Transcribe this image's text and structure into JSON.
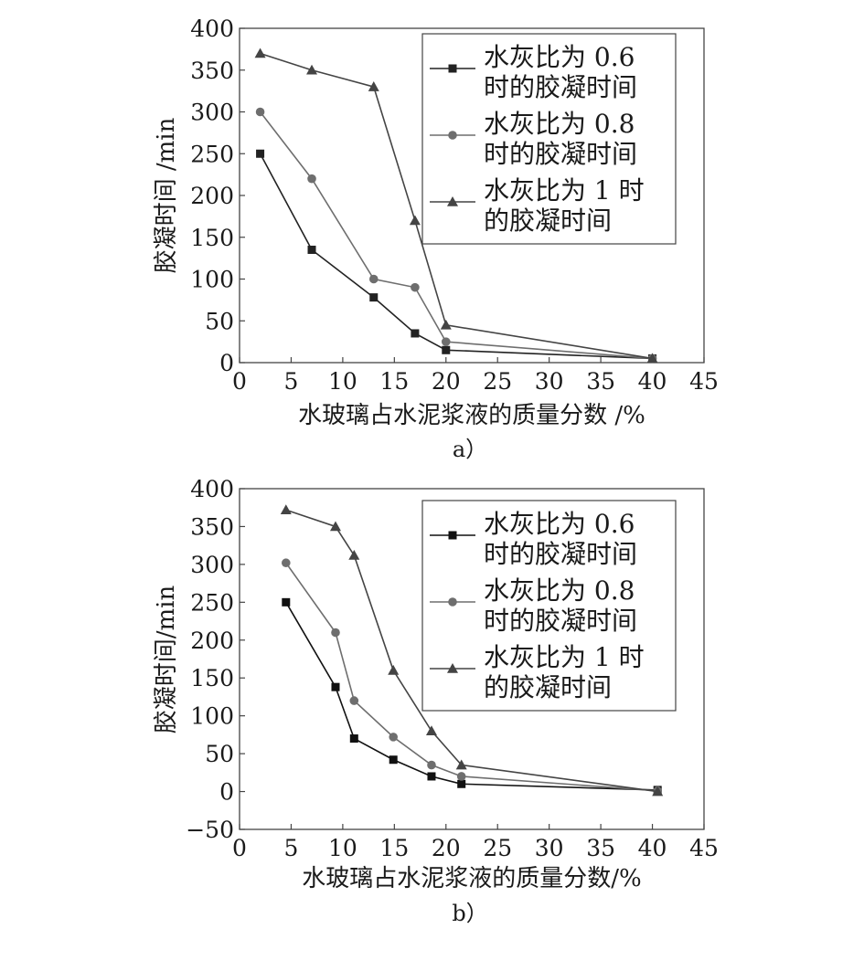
{
  "chart_data": [
    {
      "type": "line",
      "caption": "a）",
      "xlabel": "水玻璃占水泥浆液的质量分数 /%",
      "ylabel": "胶凝时间 /min",
      "xlim": [
        0,
        45
      ],
      "ylim": [
        0,
        400
      ],
      "xticks": [
        "0",
        "5",
        "10",
        "15",
        "20",
        "25",
        "30",
        "35",
        "40",
        "45"
      ],
      "yticks": [
        "0",
        "50",
        "100",
        "150",
        "200",
        "250",
        "300",
        "350",
        "400"
      ],
      "grid": false,
      "legend_position": "top-right",
      "series": [
        {
          "name_lines": [
            "水灰比为 0.6",
            "时的胶凝时间"
          ],
          "marker": "square",
          "color": "#222222",
          "x": [
            2,
            7,
            13,
            17,
            20,
            40
          ],
          "y": [
            250,
            135,
            78,
            35,
            15,
            5
          ]
        },
        {
          "name_lines": [
            "水灰比为 0.8",
            "时的胶凝时间"
          ],
          "marker": "circle",
          "color": "#6e6e6e",
          "x": [
            2,
            7,
            13,
            17,
            20,
            40
          ],
          "y": [
            300,
            220,
            100,
            90,
            25,
            5
          ]
        },
        {
          "name_lines": [
            "水灰比为 1 时",
            "的胶凝时间"
          ],
          "marker": "triangle",
          "color": "#444444",
          "x": [
            2,
            7,
            13,
            17,
            20,
            40
          ],
          "y": [
            370,
            350,
            330,
            170,
            45,
            5
          ]
        }
      ]
    },
    {
      "type": "line",
      "caption": "b）",
      "xlabel": "水玻璃占水泥浆液的质量分数/%",
      "ylabel": "胶凝时间/min",
      "xlim": [
        0,
        45
      ],
      "ylim": [
        -50,
        400
      ],
      "xticks": [
        "0",
        "5",
        "10",
        "15",
        "20",
        "25",
        "30",
        "35",
        "40",
        "45"
      ],
      "yticks": [
        "−50",
        "0",
        "50",
        "100",
        "150",
        "200",
        "250",
        "300",
        "350",
        "400"
      ],
      "grid": false,
      "legend_position": "top-right",
      "series": [
        {
          "name_lines": [
            "水灰比为 0.6",
            "时的胶凝时间"
          ],
          "marker": "square",
          "color": "#111111",
          "x": [
            4.5,
            9.3,
            11.1,
            14.9,
            18.6,
            21.5,
            40.5
          ],
          "y": [
            250,
            138,
            70,
            42,
            20,
            10,
            2
          ]
        },
        {
          "name_lines": [
            "水灰比为 0.8",
            "时的胶凝时间"
          ],
          "marker": "circle",
          "color": "#6e6e6e",
          "x": [
            4.5,
            9.3,
            11.1,
            14.9,
            18.6,
            21.5,
            40.5
          ],
          "y": [
            302,
            210,
            120,
            72,
            35,
            20,
            1
          ]
        },
        {
          "name_lines": [
            "水灰比为 1 时",
            "的胶凝时间"
          ],
          "marker": "triangle",
          "color": "#444444",
          "x": [
            4.5,
            9.3,
            11.1,
            14.9,
            18.6,
            21.5,
            40.5
          ],
          "y": [
            372,
            350,
            312,
            160,
            80,
            35,
            0
          ]
        }
      ]
    }
  ]
}
